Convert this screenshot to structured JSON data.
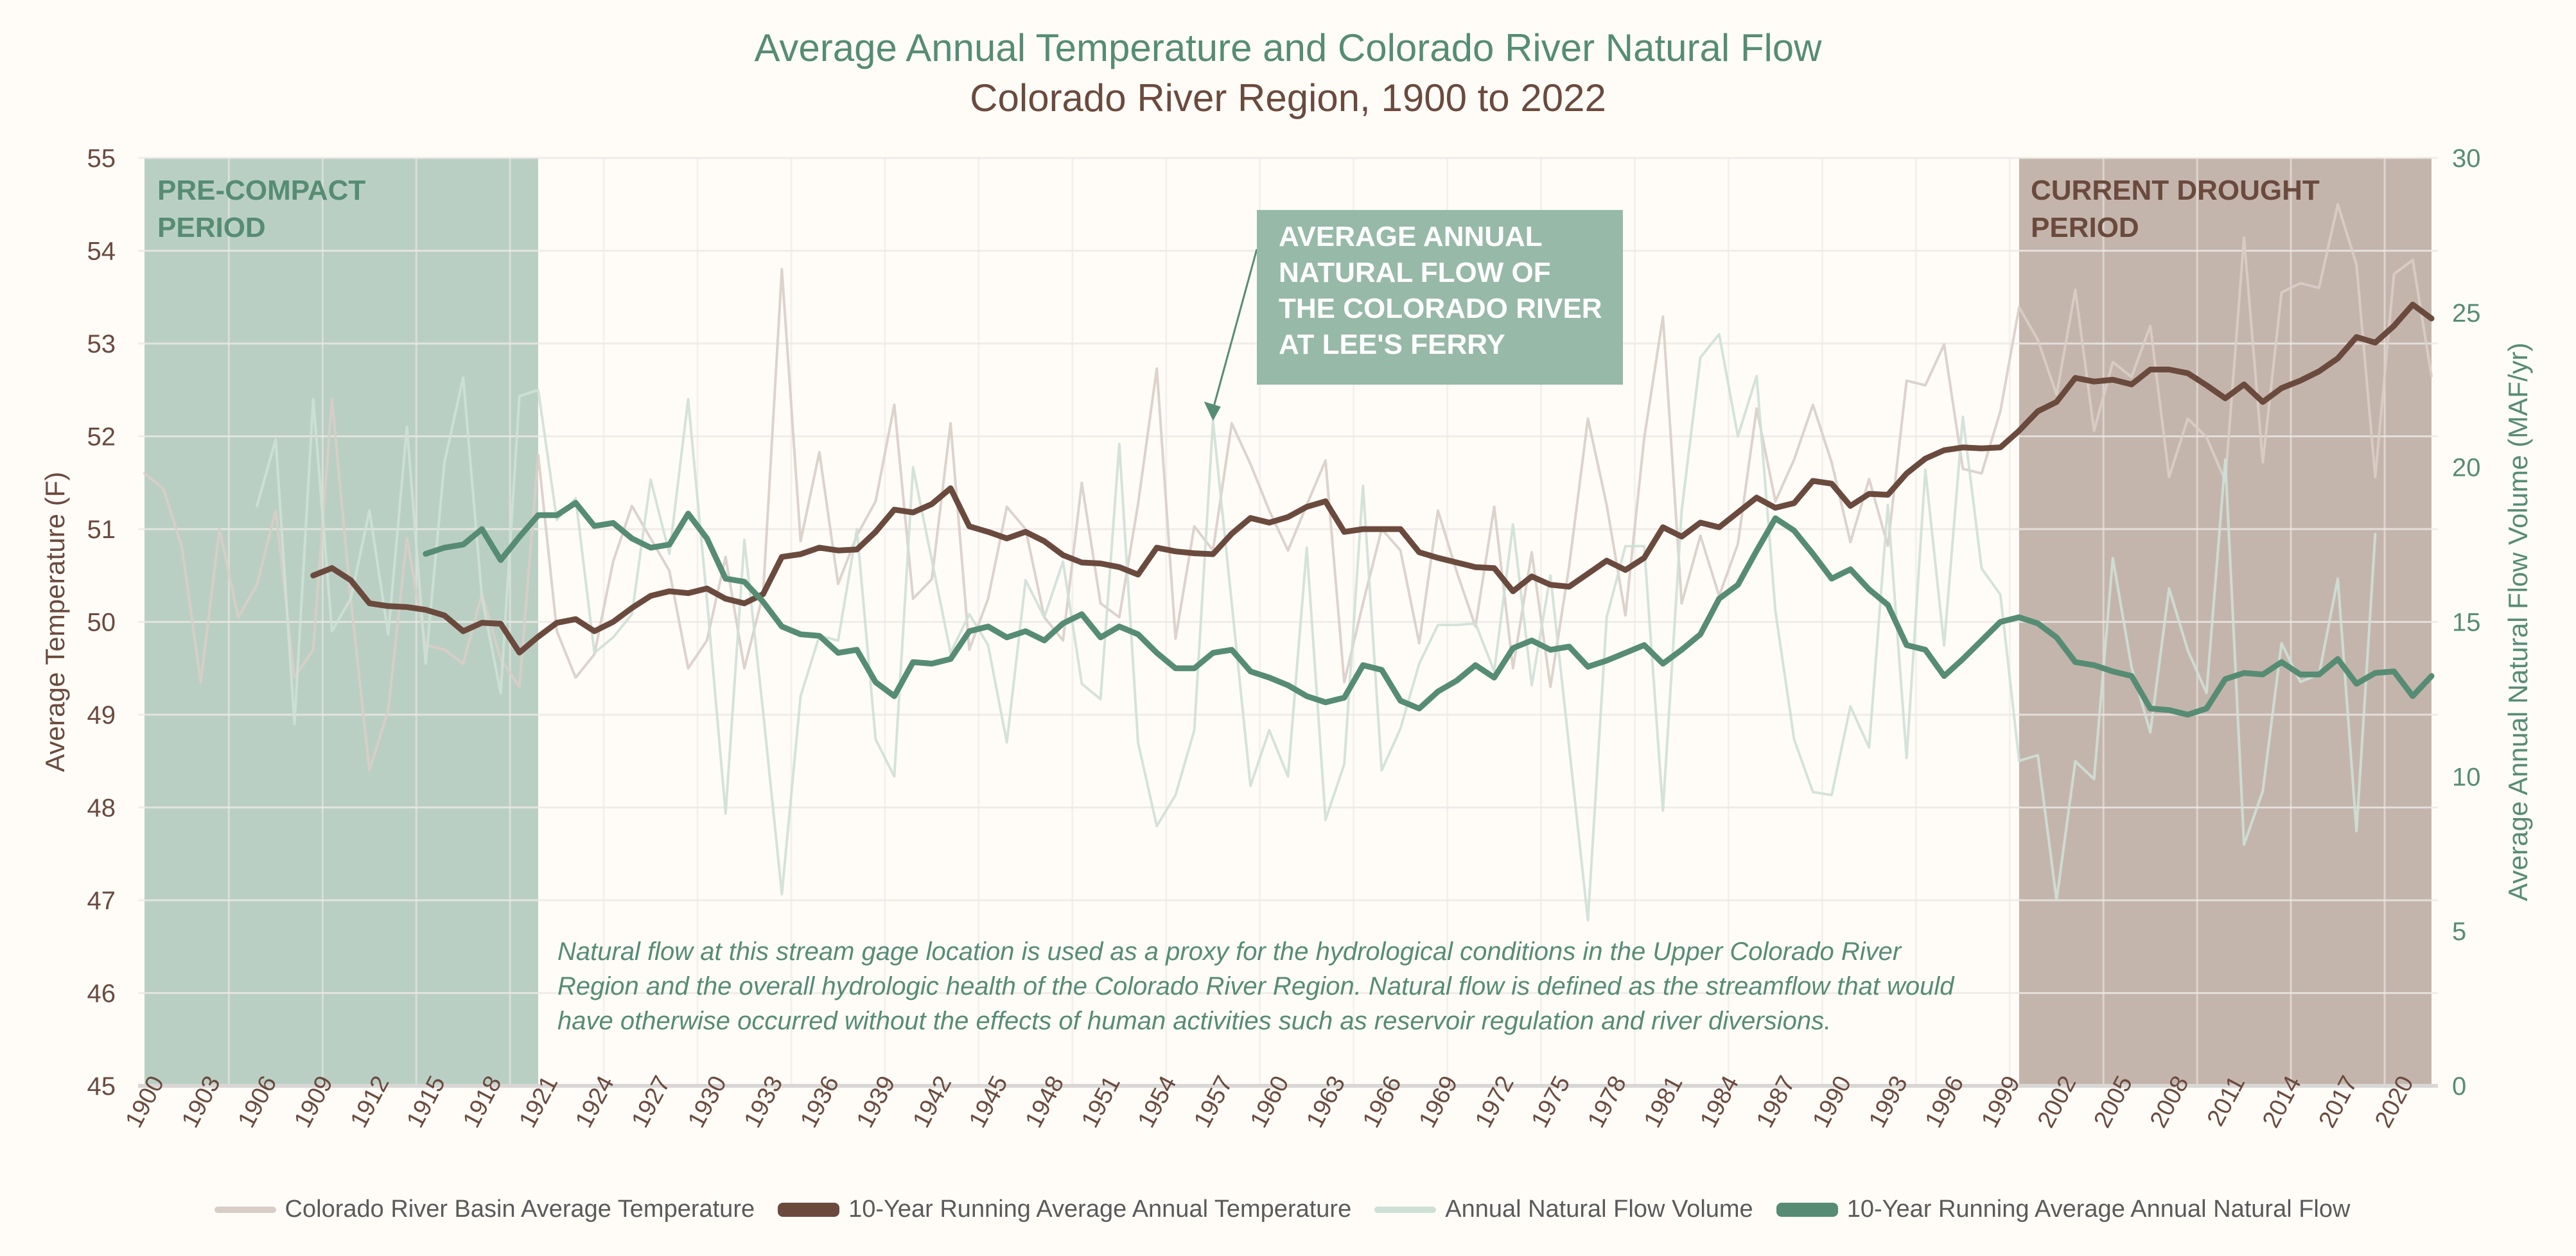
{
  "title": "Average Annual Temperature and Colorado River Natural Flow",
  "subtitle": "Colorado River Region, 1900 to 2022",
  "callout": {
    "lines": [
      "AVERAGE ANNUAL",
      "NATURAL FLOW OF",
      "THE COLORADO RIVER",
      "AT LEE'S FERRY"
    ]
  },
  "notes": "Natural flow at this stream gage location is used as a proxy for the hydrological conditions in the Upper Colorado River Region and the overall hydrologic health of the Colorado River Region. Natural flow is defined as the streamflow that would have otherwise occurred without the effects of human activities such as reservoir regulation and river diversions.",
  "colors": {
    "background": "#fffcf8",
    "green": "#568c74",
    "brown": "#6b4a3e",
    "temp_light": "#d9cdc7",
    "flow_light": "#cfe0d6",
    "pre_compact_shade": "#bacfc4",
    "drought_shade": "#c4b5ac"
  },
  "chart_data": {
    "type": "line",
    "title": "Average Annual Temperature and Colorado River Natural Flow",
    "subtitle": "Colorado River Region, 1900 to 2022",
    "xlabel": "",
    "ylabel_left": "Average Temperature (F)",
    "ylabel_right": "Average Annual Natural Flow Volume (MAF/yr)",
    "xlim": [
      1900,
      2022
    ],
    "ylim_left": [
      45,
      55
    ],
    "ylim_right": [
      0,
      30
    ],
    "grid": true,
    "legend_position": "bottom",
    "x_ticks": [
      "1900",
      "1903",
      "1906",
      "1909",
      "1912",
      "1915",
      "1918",
      "1921",
      "1924",
      "1927",
      "1930",
      "1933",
      "1936",
      "1939",
      "1942",
      "1945",
      "1948",
      "1951",
      "1954",
      "1957",
      "1960",
      "1963",
      "1966",
      "1969",
      "1972",
      "1975",
      "1978",
      "1981",
      "1984",
      "1987",
      "1990",
      "1993",
      "1996",
      "1999",
      "2002",
      "2005",
      "2008",
      "2011",
      "2014",
      "2017",
      "2020"
    ],
    "y_ticks_left": [
      "45",
      "46",
      "47",
      "48",
      "49",
      "50",
      "51",
      "52",
      "53",
      "54",
      "55"
    ],
    "y_ticks_right": [
      "0",
      "5",
      "10",
      "15",
      "20",
      "25",
      "30"
    ],
    "shaded_periods": [
      {
        "label_lines": [
          "PRE-COMPACT",
          "PERIOD"
        ],
        "start": 1900,
        "end": 1921
      },
      {
        "label_lines": [
          "CURRENT DROUGHT",
          "PERIOD"
        ],
        "start": 2000,
        "end": 2022
      }
    ],
    "series": [
      {
        "name": "Colorado River Basin Average Temperature",
        "axis": "left",
        "start_year": 1900,
        "color": "#d9cdc7",
        "values": [
          51.6,
          51.44,
          50.8,
          49.35,
          51.0,
          50.05,
          50.4,
          51.2,
          49.4,
          49.7,
          52.4,
          50.25,
          48.4,
          49.05,
          50.9,
          49.75,
          49.7,
          49.55,
          50.3,
          49.6,
          49.3,
          51.8,
          49.9,
          49.4,
          49.65,
          50.65,
          51.25,
          50.9,
          50.55,
          49.5,
          49.8,
          50.7,
          49.5,
          50.3,
          53.8,
          50.87,
          51.83,
          50.41,
          50.93,
          51.3,
          52.34,
          50.25,
          50.46,
          52.14,
          49.7,
          50.25,
          51.24,
          51.0,
          50.05,
          49.8,
          51.5,
          50.2,
          50.05,
          51.27,
          52.73,
          49.82,
          51.03,
          50.77,
          52.14,
          51.7,
          51.2,
          50.77,
          51.26,
          51.74,
          49.35,
          50.2,
          51.0,
          50.77,
          49.77,
          51.2,
          50.54,
          49.95,
          51.24,
          49.5,
          50.75,
          49.3,
          50.6,
          52.19,
          51.26,
          50.07,
          51.98,
          53.29,
          50.2,
          50.93,
          50.28,
          50.84,
          52.3,
          51.3,
          51.75,
          52.34,
          51.72,
          50.86,
          51.54,
          50.82,
          52.6,
          52.55,
          52.99,
          51.65,
          51.6,
          52.27,
          53.39,
          53.04,
          52.45,
          53.58,
          52.06,
          52.8,
          52.64,
          53.19,
          51.56,
          52.19,
          51.99,
          51.52,
          54.14,
          51.72,
          53.55,
          53.65,
          53.6,
          54.5,
          53.85,
          51.56,
          53.75,
          53.9,
          52.65
        ]
      },
      {
        "name": "10-Year Running Average Annual Temperature",
        "axis": "left",
        "start_year": 1909,
        "color": "#6b4a3e",
        "values": [
          50.5,
          50.58,
          50.45,
          50.2,
          50.17,
          50.16,
          50.13,
          50.07,
          49.9,
          49.99,
          49.98,
          49.67,
          49.84,
          49.99,
          50.03,
          49.9,
          50.0,
          50.15,
          50.28,
          50.33,
          50.31,
          50.36,
          50.25,
          50.2,
          50.3,
          50.7,
          50.73,
          50.8,
          50.77,
          50.78,
          50.97,
          51.21,
          51.18,
          51.27,
          51.44,
          51.03,
          50.97,
          50.9,
          50.97,
          50.87,
          50.72,
          50.64,
          50.63,
          50.59,
          50.51,
          50.8,
          50.76,
          50.74,
          50.73,
          50.95,
          51.12,
          51.07,
          51.13,
          51.24,
          51.3,
          50.97,
          51.0,
          51.0,
          51.0,
          50.75,
          50.69,
          50.64,
          50.59,
          50.58,
          50.33,
          50.49,
          50.4,
          50.38,
          50.52,
          50.66,
          50.56,
          50.69,
          51.02,
          50.92,
          51.07,
          51.02,
          51.18,
          51.34,
          51.23,
          51.28,
          51.52,
          51.49,
          51.25,
          51.38,
          51.37,
          51.6,
          51.76,
          51.85,
          51.88,
          51.87,
          51.88,
          52.06,
          52.27,
          52.37,
          52.63,
          52.59,
          52.61,
          52.56,
          52.72,
          52.72,
          52.68,
          52.55,
          52.41,
          52.56,
          52.37,
          52.52,
          52.6,
          52.7,
          52.84,
          53.07,
          53.01,
          53.19,
          53.42,
          53.27
        ]
      },
      {
        "name": "Annual Natural Flow Volume",
        "axis": "right",
        "start_year": 1906,
        "color": "#cfe0d6",
        "values": [
          18.75,
          20.9,
          11.7,
          22.2,
          14.7,
          15.75,
          18.6,
          14.6,
          21.3,
          13.65,
          20.15,
          22.9,
          15.8,
          12.7,
          22.3,
          22.5,
          18.3,
          19.0,
          14.0,
          14.5,
          15.25,
          19.6,
          17.2,
          22.2,
          15.75,
          8.8,
          17.65,
          12.1,
          6.2,
          12.6,
          14.55,
          14.4,
          18.0,
          11.2,
          10.0,
          20.0,
          17.0,
          14.0,
          15.25,
          14.25,
          11.1,
          16.35,
          15.15,
          16.95,
          13.0,
          12.5,
          20.75,
          11.1,
          8.4,
          9.4,
          11.5,
          21.5,
          15.6,
          9.7,
          11.5,
          10.0,
          17.4,
          8.6,
          10.4,
          19.4,
          10.2,
          11.55,
          13.65,
          14.9,
          14.9,
          14.95,
          13.4,
          18.15,
          12.95,
          16.5,
          10.95,
          5.35,
          15.15,
          17.45,
          17.45,
          8.9,
          18.6,
          23.55,
          24.3,
          21.0,
          22.95,
          15.35,
          11.2,
          9.5,
          9.4,
          12.27,
          10.94,
          18.78,
          10.6,
          19.92,
          14.24,
          21.63,
          16.73,
          15.88,
          10.51,
          10.69,
          6.0,
          10.49,
          9.92,
          17.06,
          13.53,
          11.43,
          16.08,
          14.08,
          12.7,
          20.25,
          7.8,
          9.53,
          14.31,
          13.06,
          13.3,
          16.4,
          8.24,
          17.84
        ]
      },
      {
        "name": "10-Year Running Average Annual Natural Flow",
        "axis": "right",
        "start_year": 1915,
        "color": "#568c74",
        "values": [
          17.2,
          17.4,
          17.5,
          18.0,
          17.0,
          17.75,
          18.45,
          18.45,
          18.85,
          18.1,
          18.2,
          17.7,
          17.4,
          17.5,
          18.5,
          17.7,
          16.4,
          16.3,
          15.65,
          14.85,
          14.6,
          14.55,
          14.0,
          14.1,
          13.05,
          12.6,
          13.7,
          13.65,
          13.8,
          14.7,
          14.85,
          14.5,
          14.7,
          14.4,
          14.95,
          15.25,
          14.5,
          14.85,
          14.6,
          14.0,
          13.5,
          13.5,
          14.0,
          14.1,
          13.4,
          13.2,
          12.95,
          12.6,
          12.4,
          12.55,
          13.6,
          13.45,
          12.45,
          12.2,
          12.75,
          13.1,
          13.6,
          13.2,
          14.15,
          14.4,
          14.1,
          14.2,
          13.55,
          13.75,
          14.0,
          14.25,
          13.65,
          14.1,
          14.6,
          15.75,
          16.2,
          17.3,
          18.35,
          17.95,
          17.2,
          16.4,
          16.7,
          16.05,
          15.55,
          14.25,
          14.1,
          13.25,
          13.8,
          14.4,
          15.0,
          15.15,
          14.95,
          14.5,
          13.7,
          13.6,
          13.4,
          13.25,
          12.2,
          12.15,
          12.0,
          12.2,
          13.15,
          13.35,
          13.3,
          13.7,
          13.3,
          13.3,
          13.8,
          13.0,
          13.35,
          13.4,
          12.6,
          13.25
        ]
      }
    ]
  }
}
